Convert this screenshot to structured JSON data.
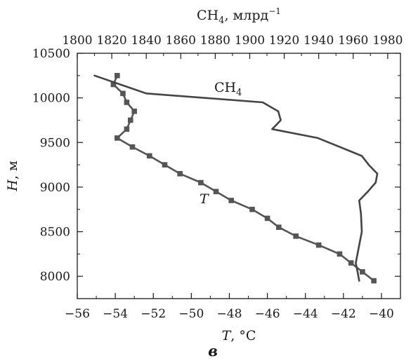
{
  "chart_data": {
    "type": "line",
    "panel_label": "в",
    "x_bottom": {
      "label_var": "T",
      "label_unit": ", °C",
      "lim": [
        -56,
        -39
      ],
      "ticks": [
        -56,
        -54,
        -52,
        -50,
        -48,
        -46,
        -44,
        -42,
        -40
      ],
      "tick_labels": [
        "−56",
        "−54",
        "−52",
        "−50",
        "−48",
        "−46",
        "−44",
        "−42",
        "−40"
      ]
    },
    "x_top": {
      "label_main": "CH",
      "label_sub": "4",
      "label_unit": ", млрд",
      "label_sup": "−1",
      "lim": [
        1800,
        1987.4
      ],
      "ticks": [
        1800,
        1820,
        1840,
        1860,
        1880,
        1900,
        1920,
        1940,
        1960,
        1980
      ],
      "tick_labels": [
        "1800",
        "1820",
        "1840",
        "1860",
        "1880",
        "1900",
        "1920",
        "1940",
        "1960",
        "1980"
      ]
    },
    "y": {
      "label_var": "H",
      "label_unit": ", м",
      "lim": [
        7750,
        10500
      ],
      "ticks": [
        8000,
        8500,
        9000,
        9500,
        10000,
        10500
      ],
      "tick_labels": [
        "8000",
        "8500",
        "9000",
        "9500",
        "10000",
        "10500"
      ]
    },
    "series": [
      {
        "label_main": "T",
        "axis": "bottom",
        "marker": "square",
        "color": "#555555",
        "points": [
          [
            -40.4,
            7950
          ],
          [
            -41.0,
            8050
          ],
          [
            -41.6,
            8150
          ],
          [
            -42.2,
            8250
          ],
          [
            -43.3,
            8350
          ],
          [
            -44.5,
            8450
          ],
          [
            -45.4,
            8550
          ],
          [
            -46.0,
            8650
          ],
          [
            -46.8,
            8750
          ],
          [
            -47.9,
            8850
          ],
          [
            -48.7,
            8950
          ],
          [
            -49.5,
            9050
          ],
          [
            -50.6,
            9150
          ],
          [
            -51.4,
            9250
          ],
          [
            -52.2,
            9350
          ],
          [
            -53.1,
            9450
          ],
          [
            -53.9,
            9550
          ],
          [
            -53.4,
            9650
          ],
          [
            -53.2,
            9750
          ],
          [
            -53.0,
            9850
          ],
          [
            -53.4,
            9950
          ],
          [
            -53.6,
            10050
          ],
          [
            -54.1,
            10150
          ],
          [
            -53.9,
            10250
          ]
        ]
      },
      {
        "label_main": "CH",
        "label_sub": "4",
        "axis": "top",
        "marker": "none",
        "color": "#444444",
        "points": [
          [
            1963.5,
            7950
          ],
          [
            1962.5,
            8050
          ],
          [
            1961.5,
            8150
          ],
          [
            1963.5,
            8350
          ],
          [
            1965.0,
            8500
          ],
          [
            1964.5,
            8700
          ],
          [
            1963.5,
            8850
          ],
          [
            1968.5,
            8950
          ],
          [
            1973.0,
            9050
          ],
          [
            1974.0,
            9150
          ],
          [
            1969.0,
            9250
          ],
          [
            1965.0,
            9350
          ],
          [
            1939.5,
            9550
          ],
          [
            1913.0,
            9650
          ],
          [
            1918.0,
            9750
          ],
          [
            1916.5,
            9850
          ],
          [
            1907.5,
            9950
          ],
          [
            1840.0,
            10050
          ],
          [
            1810.0,
            10250
          ]
        ]
      }
    ]
  }
}
